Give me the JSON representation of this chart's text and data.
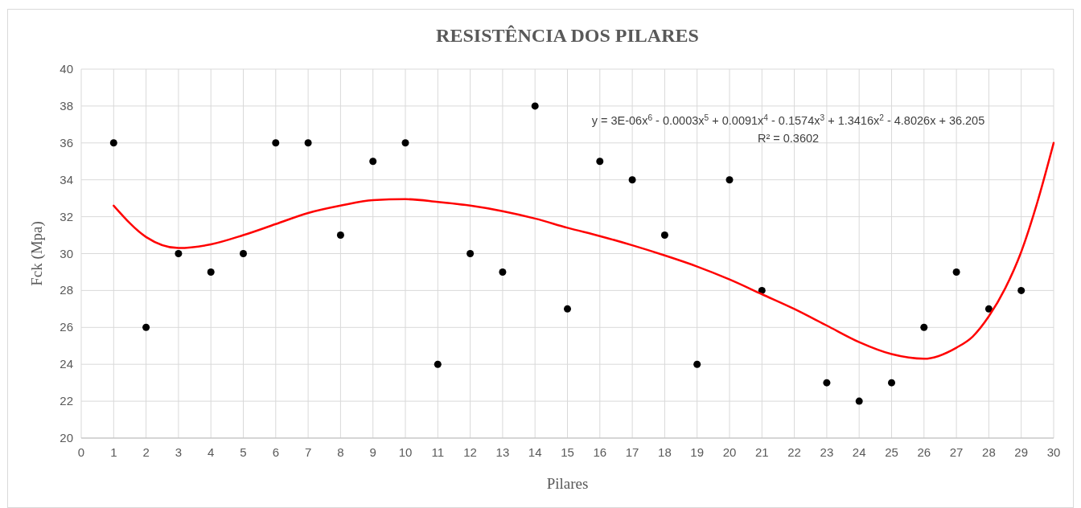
{
  "chart_data": {
    "type": "scatter",
    "title": "RESISTÊNCIA DOS PILARES",
    "xlabel": "Pilares",
    "ylabel": "Fck (Mpa)",
    "xlim": [
      0,
      30
    ],
    "xticks": [
      0,
      1,
      2,
      3,
      4,
      5,
      6,
      7,
      8,
      9,
      10,
      11,
      12,
      13,
      14,
      15,
      16,
      17,
      18,
      19,
      20,
      21,
      22,
      23,
      24,
      25,
      26,
      27,
      28,
      29,
      30
    ],
    "ylim": [
      20,
      40
    ],
    "yticks": [
      20,
      22,
      24,
      26,
      28,
      30,
      32,
      34,
      36,
      38,
      40
    ],
    "grid": true,
    "marker": "circle",
    "series": [
      {
        "color": "#000000",
        "x": [
          1,
          2,
          3,
          4,
          5,
          6,
          7,
          8,
          9,
          10,
          11,
          12,
          13,
          14,
          15,
          16,
          17,
          18,
          19,
          20,
          21,
          23,
          24,
          25,
          26,
          27,
          28,
          29
        ],
        "values": [
          36,
          26,
          30,
          29,
          30,
          36,
          36,
          31,
          35,
          36,
          24,
          30,
          29,
          38,
          27,
          35,
          34,
          31,
          24,
          34,
          28,
          23,
          22,
          23,
          26,
          29,
          27,
          28
        ]
      },
      {
        "type": "line",
        "color": "#ff0000",
        "marker": "none",
        "line_style": "solid",
        "x": [
          1,
          2,
          3,
          4,
          5,
          6,
          7,
          8,
          9,
          10,
          11,
          12,
          13,
          14,
          15,
          16,
          17,
          18,
          19,
          20,
          21,
          22,
          23,
          24,
          25,
          26,
          27,
          27.5,
          28,
          28.5,
          29,
          29.5,
          30
        ],
        "values": [
          32.6,
          30.9,
          30.3,
          30.5,
          31.0,
          31.6,
          32.2,
          32.6,
          32.9,
          32.95,
          32.8,
          32.6,
          32.3,
          31.9,
          31.4,
          30.95,
          30.45,
          29.9,
          29.3,
          28.6,
          27.8,
          27.0,
          26.1,
          25.2,
          24.55,
          24.3,
          24.9,
          25.5,
          26.6,
          28.1,
          30.1,
          32.8,
          36.0
        ]
      }
    ],
    "annotations": [
      "y = 3E-06x$^{6}$ - 0.0003x$^{5}$ + 0.0091x$^{4}$ - 0.1574x$^{3}$ + 1.3416x$^{2}$ - 4.8026x + 36.205",
      "R² = 0.3602"
    ]
  }
}
